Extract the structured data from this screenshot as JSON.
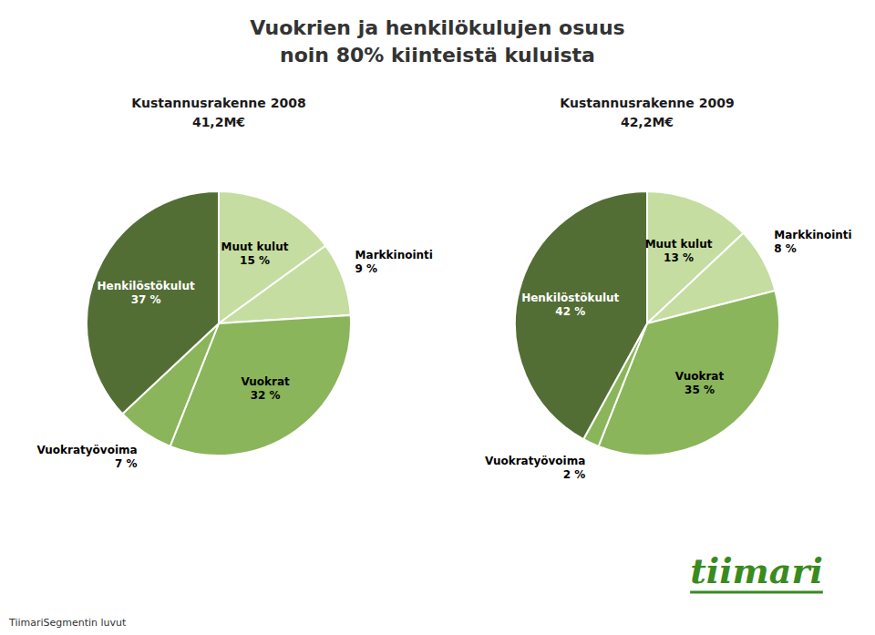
{
  "title": "Vuokrien ja henkilökulujen osuus\nnoin 80% kiinteistä kuluista",
  "annotations": [
    {
      "text": "TiimariSegmentin luvut"
    },
    {
      "text": "tiimari",
      "color": "#3a8a1e"
    }
  ],
  "chart_data": [
    {
      "type": "pie",
      "title": "Kustannusrakenne 2008\n41,2M€",
      "categories": [
        "Muut kulut",
        "Markkinointi",
        "Vuokrat",
        "Vuokratyövoima",
        "Henkilöstökulut"
      ],
      "values": [
        15,
        9,
        32,
        7,
        37
      ],
      "value_labels": [
        "15 %",
        "9 %",
        "32 %",
        "7 %",
        "37 %"
      ],
      "colors": [
        "#c5dda0",
        "#c5dda0",
        "#8ab55a",
        "#8ab55a",
        "#536e35"
      ],
      "data_labels": true
    },
    {
      "type": "pie",
      "title": "Kustannusrakenne 2009\n42,2M€",
      "categories": [
        "Muut kulut",
        "Markkinointi",
        "Vuokrat",
        "Vuokratyövoima",
        "Henkilöstökulut"
      ],
      "values": [
        13,
        8,
        35,
        2,
        42
      ],
      "value_labels": [
        "13 %",
        "8 %",
        "35 %",
        "2 %",
        "42 %"
      ],
      "colors": [
        "#c5dda0",
        "#c5dda0",
        "#8ab55a",
        "#8ab55a",
        "#536e35"
      ],
      "data_labels": true
    }
  ]
}
